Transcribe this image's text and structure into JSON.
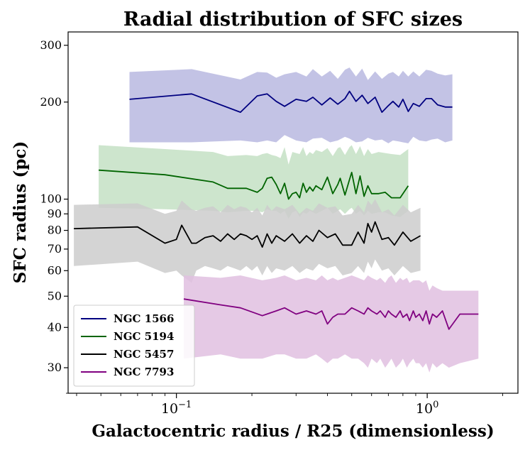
{
  "chart_data": {
    "type": "line",
    "title": "Radial distribution of SFC sizes",
    "xlabel": "Galactocentric radius / R25 (dimensionless)",
    "ylabel": "SFC radius (pc)",
    "xscale": "log",
    "yscale": "log",
    "xlim": [
      0.037,
      2.3
    ],
    "ylim": [
      25,
      330
    ],
    "x_ticks": [
      {
        "value": 0.1,
        "base": "10",
        "exp": "−1"
      },
      {
        "value": 1.0,
        "base": "10",
        "exp": "0"
      }
    ],
    "y_ticks": [
      {
        "value": 30,
        "label": "30"
      },
      {
        "value": 40,
        "label": "40"
      },
      {
        "value": 50,
        "label": "50"
      },
      {
        "value": 60,
        "label": "60"
      },
      {
        "value": 70,
        "label": "70"
      },
      {
        "value": 80,
        "label": "80"
      },
      {
        "value": 90,
        "label": "90"
      },
      {
        "value": 100,
        "label": "100"
      },
      {
        "value": 200,
        "label": "200"
      },
      {
        "value": 300,
        "label": "300"
      }
    ],
    "legend_position": "lower-left",
    "series": [
      {
        "name": "NGC 1566",
        "color": "#000080",
        "band_color": "#b8b8e0",
        "x": [
          0.065,
          0.115,
          0.18,
          0.21,
          0.23,
          0.25,
          0.27,
          0.3,
          0.33,
          0.35,
          0.38,
          0.41,
          0.44,
          0.47,
          0.49,
          0.52,
          0.55,
          0.58,
          0.62,
          0.66,
          0.7,
          0.73,
          0.77,
          0.8,
          0.84,
          0.88,
          0.93,
          0.99,
          1.04,
          1.1,
          1.18,
          1.26
        ],
        "y": [
          204,
          212,
          186,
          209,
          212,
          201,
          194,
          204,
          201,
          207,
          196,
          206,
          197,
          205,
          216,
          201,
          210,
          198,
          207,
          186,
          195,
          201,
          193,
          204,
          187,
          198,
          194,
          205,
          205,
          196,
          193,
          193
        ],
        "lower": [
          150,
          150,
          152,
          150,
          152,
          150,
          158,
          152,
          150,
          154,
          155,
          150,
          152,
          156,
          154,
          150,
          151,
          155,
          152,
          153,
          149,
          152,
          151,
          150,
          149,
          156,
          152,
          151,
          153,
          154,
          150,
          152
        ],
        "upper": [
          248,
          253,
          235,
          248,
          247,
          238,
          244,
          248,
          240,
          253,
          240,
          250,
          236,
          252,
          256,
          240,
          254,
          234,
          249,
          236,
          245,
          248,
          240,
          250,
          240,
          249,
          240,
          252,
          250,
          245,
          242,
          244
        ]
      },
      {
        "name": "NGC 5194",
        "color": "#006400",
        "band_color": "#c4e0c4",
        "x": [
          0.049,
          0.09,
          0.14,
          0.16,
          0.19,
          0.21,
          0.22,
          0.23,
          0.24,
          0.25,
          0.26,
          0.27,
          0.28,
          0.29,
          0.3,
          0.31,
          0.32,
          0.33,
          0.34,
          0.35,
          0.36,
          0.38,
          0.4,
          0.42,
          0.44,
          0.45,
          0.47,
          0.49,
          0.5,
          0.52,
          0.54,
          0.56,
          0.58,
          0.6,
          0.64,
          0.68,
          0.72,
          0.78,
          0.84
        ],
        "y": [
          123,
          119,
          113,
          108,
          108,
          105,
          108,
          116,
          117,
          111,
          104,
          112,
          100,
          104,
          105,
          101,
          112,
          105,
          109,
          106,
          110,
          107,
          117,
          104,
          111,
          116,
          103,
          115,
          121,
          104,
          118,
          102,
          110,
          104,
          104,
          105,
          101,
          101,
          110
        ],
        "lower": [
          94,
          93,
          92,
          91,
          92,
          92,
          91,
          93,
          92,
          92,
          90,
          92,
          87,
          91,
          92,
          88,
          91,
          90,
          92,
          91,
          90,
          92,
          94,
          90,
          92,
          93,
          90,
          93,
          94,
          90,
          92,
          89,
          92,
          90,
          91,
          91,
          89,
          88,
          92
        ],
        "upper": [
          147,
          143,
          140,
          136,
          137,
          136,
          138,
          139,
          137,
          136,
          134,
          145,
          128,
          140,
          139,
          138,
          145,
          136,
          140,
          138,
          142,
          140,
          144,
          136,
          144,
          145,
          137,
          145,
          147,
          138,
          146,
          136,
          143,
          138,
          140,
          139,
          138,
          137,
          143
        ]
      },
      {
        "name": "NGC 5457",
        "color": "#000000",
        "band_color": "#cccccc",
        "x": [
          0.039,
          0.07,
          0.09,
          0.1,
          0.105,
          0.115,
          0.12,
          0.13,
          0.14,
          0.15,
          0.16,
          0.17,
          0.18,
          0.19,
          0.2,
          0.21,
          0.22,
          0.23,
          0.24,
          0.25,
          0.27,
          0.29,
          0.31,
          0.33,
          0.35,
          0.37,
          0.4,
          0.43,
          0.46,
          0.5,
          0.53,
          0.56,
          0.58,
          0.6,
          0.62,
          0.66,
          0.7,
          0.74,
          0.8,
          0.86,
          0.94
        ],
        "y": [
          81,
          82,
          73,
          75,
          83,
          73,
          73,
          76,
          77,
          74,
          78,
          75,
          78,
          77,
          75,
          77,
          71,
          78,
          73,
          77,
          74,
          78,
          73,
          77,
          74,
          80,
          76,
          78,
          72,
          72,
          79,
          73,
          84,
          79,
          85,
          75,
          76,
          72,
          79,
          74,
          77
        ],
        "lower": [
          62,
          64,
          59,
          60,
          58,
          55,
          60,
          62,
          61,
          60,
          62,
          61,
          60,
          62,
          60,
          62,
          58,
          62,
          59,
          61,
          60,
          62,
          59,
          61,
          60,
          63,
          61,
          62,
          58,
          59,
          62,
          59,
          64,
          61,
          65,
          60,
          61,
          58,
          62,
          59,
          60
        ],
        "upper": [
          96,
          97,
          90,
          92,
          99,
          93,
          92,
          94,
          95,
          91,
          96,
          93,
          95,
          94,
          91,
          94,
          89,
          96,
          92,
          95,
          93,
          96,
          90,
          94,
          92,
          97,
          94,
          95,
          89,
          90,
          96,
          91,
          99,
          96,
          100,
          91,
          93,
          89,
          96,
          91,
          94
        ]
      },
      {
        "name": "NGC 7793",
        "color": "#800080",
        "band_color": "#e0c0e0",
        "x": [
          0.107,
          0.15,
          0.18,
          0.22,
          0.25,
          0.27,
          0.3,
          0.33,
          0.36,
          0.38,
          0.4,
          0.42,
          0.44,
          0.47,
          0.5,
          0.53,
          0.56,
          0.58,
          0.6,
          0.63,
          0.65,
          0.68,
          0.7,
          0.72,
          0.75,
          0.78,
          0.8,
          0.83,
          0.85,
          0.88,
          0.9,
          0.93,
          0.96,
          0.99,
          1.02,
          1.05,
          1.09,
          1.15,
          1.22,
          1.35,
          1.6
        ],
        "y": [
          49,
          47,
          46,
          43.5,
          45,
          46,
          44,
          45,
          44,
          45,
          41,
          43,
          44,
          44,
          46,
          45,
          44,
          46,
          45,
          44,
          45,
          43,
          45,
          44,
          43,
          45,
          43,
          44,
          42,
          45,
          43,
          44,
          42,
          45,
          41,
          44,
          43,
          45,
          39.5,
          44,
          44
        ],
        "lower": [
          32,
          33,
          32,
          32,
          33,
          33,
          32,
          32,
          33,
          32,
          31,
          32,
          32,
          33,
          32,
          32,
          31,
          30,
          32,
          31,
          32,
          30,
          31,
          32,
          30,
          31,
          32,
          30,
          31,
          32,
          31,
          31,
          30,
          31,
          29,
          31,
          30,
          31,
          30,
          31,
          32
        ],
        "upper": [
          58,
          57,
          58,
          56,
          57,
          58,
          56,
          57,
          56,
          58,
          56,
          57,
          56,
          57,
          58,
          57,
          56,
          58,
          57,
          56,
          57,
          55,
          57,
          58,
          55,
          57,
          56,
          57,
          55,
          56,
          56,
          56,
          55,
          56,
          52,
          54,
          53,
          52,
          52,
          52,
          52
        ]
      }
    ]
  }
}
